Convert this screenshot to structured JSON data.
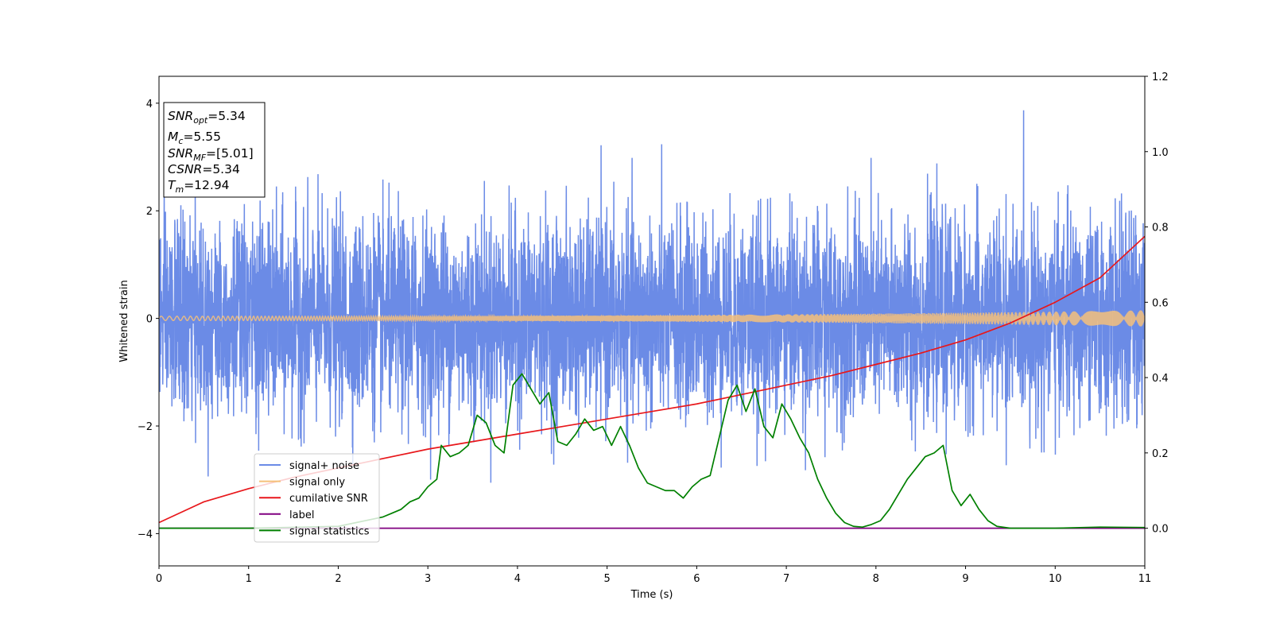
{
  "chart_data": {
    "type": "line",
    "xlabel": "Time (s)",
    "ylabel": "Whitened strain",
    "xlim": [
      0,
      11
    ],
    "ylim_left": [
      -4.6,
      4.5
    ],
    "ylim_right": [
      -0.1,
      1.2
    ],
    "x_ticks": [
      "0",
      "1",
      "2",
      "3",
      "4",
      "5",
      "6",
      "7",
      "8",
      "9",
      "10",
      "11"
    ],
    "y_ticks_left": [
      "4",
      "2",
      "0",
      "−2",
      "−4"
    ],
    "y_ticks_left_values": [
      4,
      2,
      0,
      -2,
      -4
    ],
    "y_ticks_right": [
      "1.2",
      "1.0",
      "0.8",
      "0.6",
      "0.4",
      "0.2",
      "0.0"
    ],
    "y_ticks_right_values": [
      1.2,
      1.0,
      0.8,
      0.6,
      0.4,
      0.2,
      0.0
    ],
    "grid": false,
    "legend_position": "lower-left",
    "info_box": {
      "snr_opt": {
        "symbol": "SNR",
        "sub": "opt",
        "value": "=5.34"
      },
      "mc": {
        "symbol": "M",
        "sub": "c",
        "value": "=5.55"
      },
      "snr_mf": {
        "symbol": "SNR",
        "sub": "MF",
        "value": "=[5.01]"
      },
      "csnr": {
        "symbol": "CSNR",
        "value": "=5.34"
      },
      "tm": {
        "symbol": "T",
        "sub": "m",
        "value": "=12.94"
      }
    },
    "series": [
      {
        "name": "signal+ noise",
        "axis": "left",
        "color": "#6b8be6",
        "style": "noise",
        "amplitude_typical": 1.4,
        "amplitude_max": 4.1
      },
      {
        "name": "signal only",
        "axis": "left",
        "color": "#f5c07a",
        "style": "chirp",
        "amplitude_start": 0.04,
        "amplitude_end": 0.15
      },
      {
        "name": "cumilative SNR",
        "axis": "right",
        "color": "#e8171b",
        "x": [
          0,
          0.5,
          1,
          1.5,
          2,
          2.5,
          3,
          3.5,
          4,
          4.5,
          5,
          5.5,
          6,
          6.5,
          7,
          7.5,
          8,
          8.5,
          9,
          9.5,
          10,
          10.5,
          11
        ],
        "y": [
          0.015,
          0.07,
          0.105,
          0.135,
          0.16,
          0.185,
          0.21,
          0.23,
          0.25,
          0.27,
          0.29,
          0.31,
          0.33,
          0.355,
          0.38,
          0.405,
          0.435,
          0.465,
          0.5,
          0.545,
          0.6,
          0.665,
          0.775
        ]
      },
      {
        "name": "label",
        "axis": "right",
        "color": "#800080",
        "x": [
          0,
          11
        ],
        "y": [
          0.0,
          0.0
        ]
      },
      {
        "name": "signal statistics",
        "axis": "right",
        "color": "#008000",
        "x": [
          0,
          1,
          2,
          2.5,
          2.6,
          2.7,
          2.8,
          2.9,
          3.0,
          3.1,
          3.15,
          3.25,
          3.35,
          3.45,
          3.55,
          3.65,
          3.75,
          3.85,
          3.95,
          4.05,
          4.15,
          4.25,
          4.35,
          4.45,
          4.55,
          4.65,
          4.75,
          4.85,
          4.95,
          5.05,
          5.15,
          5.25,
          5.35,
          5.45,
          5.55,
          5.65,
          5.75,
          5.85,
          5.95,
          6.05,
          6.15,
          6.25,
          6.35,
          6.45,
          6.55,
          6.65,
          6.75,
          6.85,
          6.95,
          7.05,
          7.15,
          7.25,
          7.35,
          7.45,
          7.55,
          7.65,
          7.75,
          7.85,
          7.95,
          8.05,
          8.15,
          8.25,
          8.35,
          8.45,
          8.55,
          8.65,
          8.75,
          8.85,
          8.95,
          9.05,
          9.15,
          9.25,
          9.35,
          9.5,
          9.7,
          10.0,
          10.5,
          11
        ],
        "y": [
          0.0,
          0.0,
          0.005,
          0.03,
          0.04,
          0.05,
          0.07,
          0.08,
          0.11,
          0.13,
          0.22,
          0.19,
          0.2,
          0.22,
          0.3,
          0.28,
          0.22,
          0.2,
          0.38,
          0.41,
          0.37,
          0.33,
          0.36,
          0.23,
          0.22,
          0.25,
          0.29,
          0.26,
          0.27,
          0.22,
          0.27,
          0.22,
          0.16,
          0.12,
          0.11,
          0.1,
          0.1,
          0.08,
          0.11,
          0.13,
          0.14,
          0.24,
          0.34,
          0.38,
          0.31,
          0.37,
          0.27,
          0.24,
          0.33,
          0.29,
          0.24,
          0.2,
          0.13,
          0.08,
          0.04,
          0.015,
          0.005,
          0.003,
          0.01,
          0.02,
          0.05,
          0.09,
          0.13,
          0.16,
          0.19,
          0.2,
          0.22,
          0.1,
          0.06,
          0.09,
          0.05,
          0.02,
          0.005,
          0.0,
          0.0,
          0.0,
          0.003,
          0.002
        ]
      }
    ]
  }
}
